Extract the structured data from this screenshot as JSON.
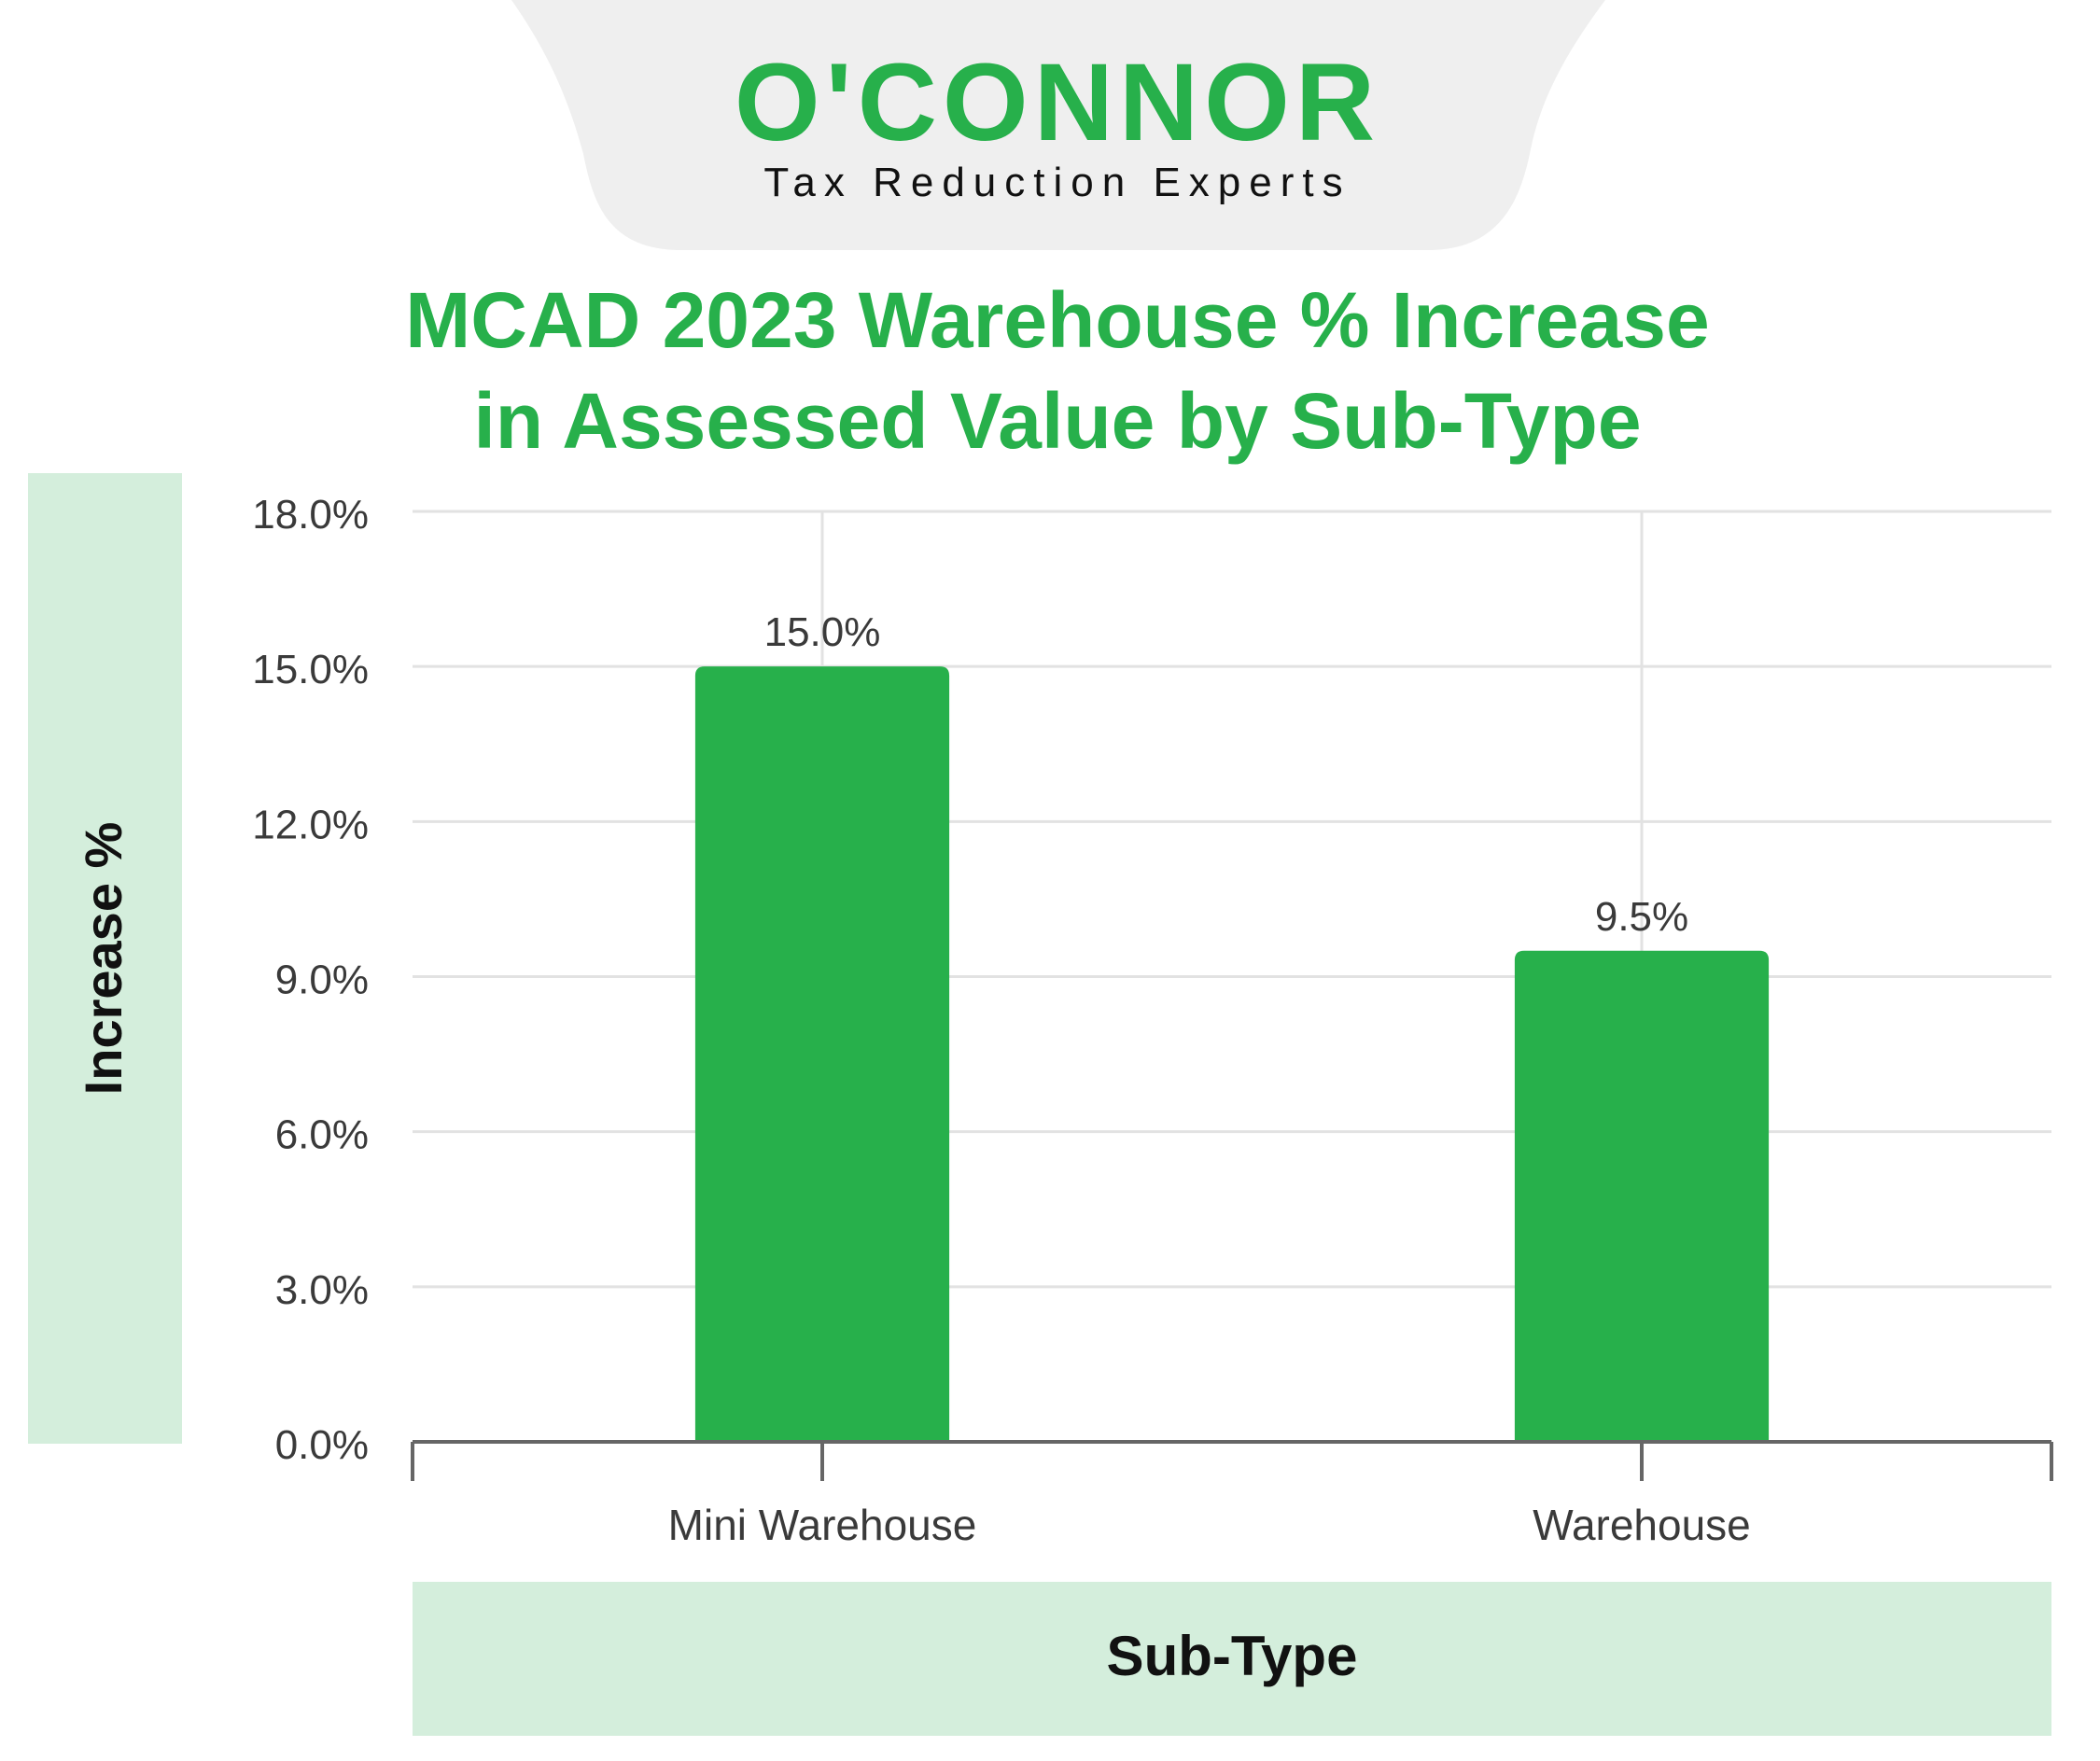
{
  "brand": {
    "name": "O'CONNOR",
    "tagline": "Tax Reduction Experts"
  },
  "colors": {
    "accent": "#27b04b",
    "panel": "#d4eedc",
    "header_bg": "#efefef",
    "grid": "#e2e2e2",
    "axis": "#666666",
    "tick_text": "#3a3a3a",
    "label_text": "#111111"
  },
  "chart_data": {
    "type": "bar",
    "title_lines": [
      "MCAD 2023 Warehouse % Increase",
      "in Assessed Value by Sub-Type"
    ],
    "categories": [
      "Mini Warehouse",
      "Warehouse"
    ],
    "values": [
      15.0,
      9.5
    ],
    "value_labels": [
      "15.0%",
      "9.5%"
    ],
    "xlabel": "Sub-Type",
    "ylabel": "Increase %",
    "ylim": [
      0,
      18
    ],
    "yticks": [
      0,
      3,
      6,
      9,
      12,
      15,
      18
    ],
    "ytick_labels": [
      "0.0%",
      "3.0%",
      "6.0%",
      "9.0%",
      "12.0%",
      "15.0%",
      "18.0%"
    ],
    "grid": true,
    "legend": "none"
  }
}
